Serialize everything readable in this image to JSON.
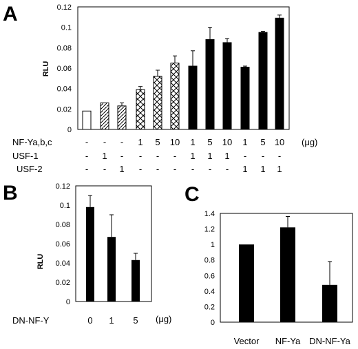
{
  "panels": [
    {
      "letter": "A"
    },
    {
      "letter": "B"
    },
    {
      "letter": "C"
    }
  ],
  "chart_data": [
    {
      "id": "A",
      "type": "bar",
      "ylabel": "RLU",
      "ylim": [
        0,
        0.12
      ],
      "yticks": [
        "0",
        "0.02",
        "0.04",
        "0.06",
        "0.08",
        "0.1",
        "0.12"
      ],
      "values": [
        0.018,
        0.026,
        0.023,
        0.039,
        0.052,
        0.065,
        0.062,
        0.088,
        0.085,
        0.061,
        0.095,
        0.109
      ],
      "errors": [
        0,
        0,
        0.003,
        0.003,
        0.006,
        0.007,
        0.015,
        0.012,
        0.004,
        0.001,
        0.001,
        0.003
      ],
      "fills": [
        "white",
        "diagonal",
        "diagonal",
        "crosshatch",
        "crosshatch",
        "crosshatch",
        "black",
        "black",
        "black",
        "black",
        "black",
        "black"
      ],
      "table": {
        "unit": "(μg)",
        "rows": [
          {
            "label": "NF-Ya,b,c",
            "cells": [
              "-",
              "-",
              "-",
              "1",
              "5",
              "10",
              "1",
              "5",
              "10",
              "1",
              "5",
              "10"
            ]
          },
          {
            "label": "USF-1",
            "cells": [
              "-",
              "1",
              "-",
              "-",
              "-",
              "-",
              "1",
              "1",
              "1",
              "-",
              "-",
              "-"
            ]
          },
          {
            "label": "USF-2",
            "cells": [
              "-",
              "-",
              "1",
              "-",
              "-",
              "-",
              "-",
              "-",
              "-",
              "1",
              "1",
              "1"
            ]
          }
        ]
      }
    },
    {
      "id": "B",
      "type": "bar",
      "ylabel": "RLU",
      "ylim": [
        0,
        0.12
      ],
      "yticks": [
        "0",
        "0.02",
        "0.04",
        "0.06",
        "0.08",
        "0.1",
        "0.12"
      ],
      "xlabel": "DN-NF-Y",
      "categories": [
        "0",
        "1",
        "5"
      ],
      "unit": "(μg)",
      "values": [
        0.098,
        0.067,
        0.043
      ],
      "errors": [
        0.012,
        0.023,
        0.007
      ]
    },
    {
      "id": "C",
      "type": "bar",
      "ylim": [
        0,
        1.4
      ],
      "yticks": [
        "0",
        "0.2",
        "0.4",
        "0.6",
        "0.8",
        "1",
        "1.2",
        "1.4"
      ],
      "categories": [
        "Vector",
        "NF-Ya",
        "DN-NF-Ya"
      ],
      "values": [
        1.0,
        1.22,
        0.48
      ],
      "errors": [
        0,
        0.14,
        0.3
      ]
    }
  ]
}
